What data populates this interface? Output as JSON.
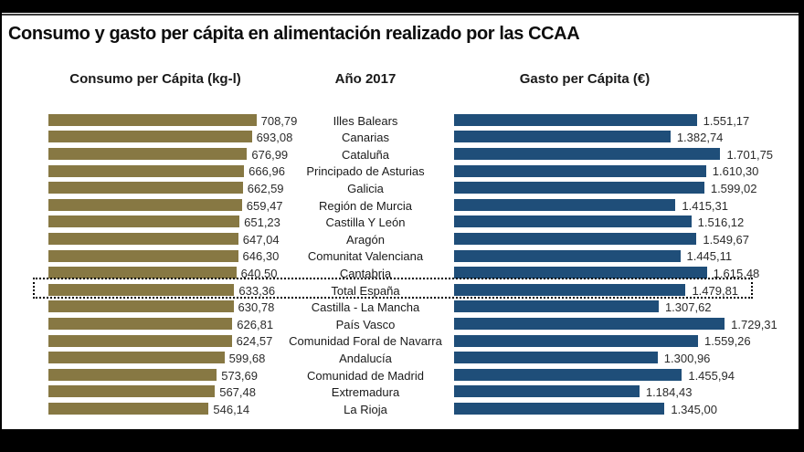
{
  "title": "Consumo y gasto per cápita en alimentación realizado por las CCAA",
  "columns": {
    "left_header": "Consumo per Cápita (kg-l)",
    "center_header": "Año 2017",
    "right_header": "Gasto per Cápita (€)"
  },
  "colors": {
    "consumo_bar": "#877843",
    "gasto_bar": "#1f4e79",
    "frame": "#000000",
    "text": "#1a1a1a"
  },
  "chart_data": {
    "type": "bar",
    "orientation": "horizontal-paired",
    "title": "Consumo y gasto per cápita en alimentación realizado por las CCAA",
    "subtitle": "Año 2017",
    "categories": [
      "Illes Balears",
      "Canarias",
      "Cataluña",
      "Principado de Asturias",
      "Galicia",
      "Región de Murcia",
      "Castilla Y León",
      "Aragón",
      "Comunitat Valenciana",
      "Cantabria",
      "Total España",
      "Castilla - La Mancha",
      "País Vasco",
      "Comunidad Foral de Navarra",
      "Andalucía",
      "Comunidad de Madrid",
      "Extremadura",
      "La Rioja"
    ],
    "series": [
      {
        "name": "Consumo per Cápita (kg-l)",
        "unit": "kg-l",
        "color": "#877843",
        "values": [
          708.79,
          693.08,
          676.99,
          666.96,
          662.59,
          659.47,
          651.23,
          647.04,
          646.3,
          640.5,
          633.36,
          630.78,
          626.81,
          624.57,
          599.68,
          573.69,
          567.48,
          546.14
        ],
        "labels": [
          "708,79",
          "693,08",
          "676,99",
          "666,96",
          "662,59",
          "659,47",
          "651,23",
          "647,04",
          "646,30",
          "640,50",
          "633,36",
          "630,78",
          "626,81",
          "624,57",
          "599,68",
          "573,69",
          "567,48",
          "546,14"
        ]
      },
      {
        "name": "Gasto per Cápita (€)",
        "unit": "€",
        "color": "#1f4e79",
        "values": [
          1551.17,
          1382.74,
          1701.75,
          1610.3,
          1599.02,
          1415.31,
          1516.12,
          1549.67,
          1445.11,
          1615.48,
          1479.81,
          1307.62,
          1729.31,
          1559.26,
          1300.96,
          1455.94,
          1184.43,
          1345.0
        ],
        "labels": [
          "1.551,17",
          "1.382,74",
          "1.701,75",
          "1.610,30",
          "1.599,02",
          "1.415,31",
          "1.516,12",
          "1.549,67",
          "1.445,11",
          "1.615,48",
          "1.479,81",
          "1.307,62",
          "1.729,31",
          "1.559,26",
          "1.300,96",
          "1.455,94",
          "1.184,43",
          "1.345,00"
        ]
      }
    ],
    "highlight_category": "Total España",
    "axis": {
      "consumo_max": 710,
      "gasto_max": 1740,
      "grid": false,
      "value_labels": "end-of-bar"
    }
  }
}
